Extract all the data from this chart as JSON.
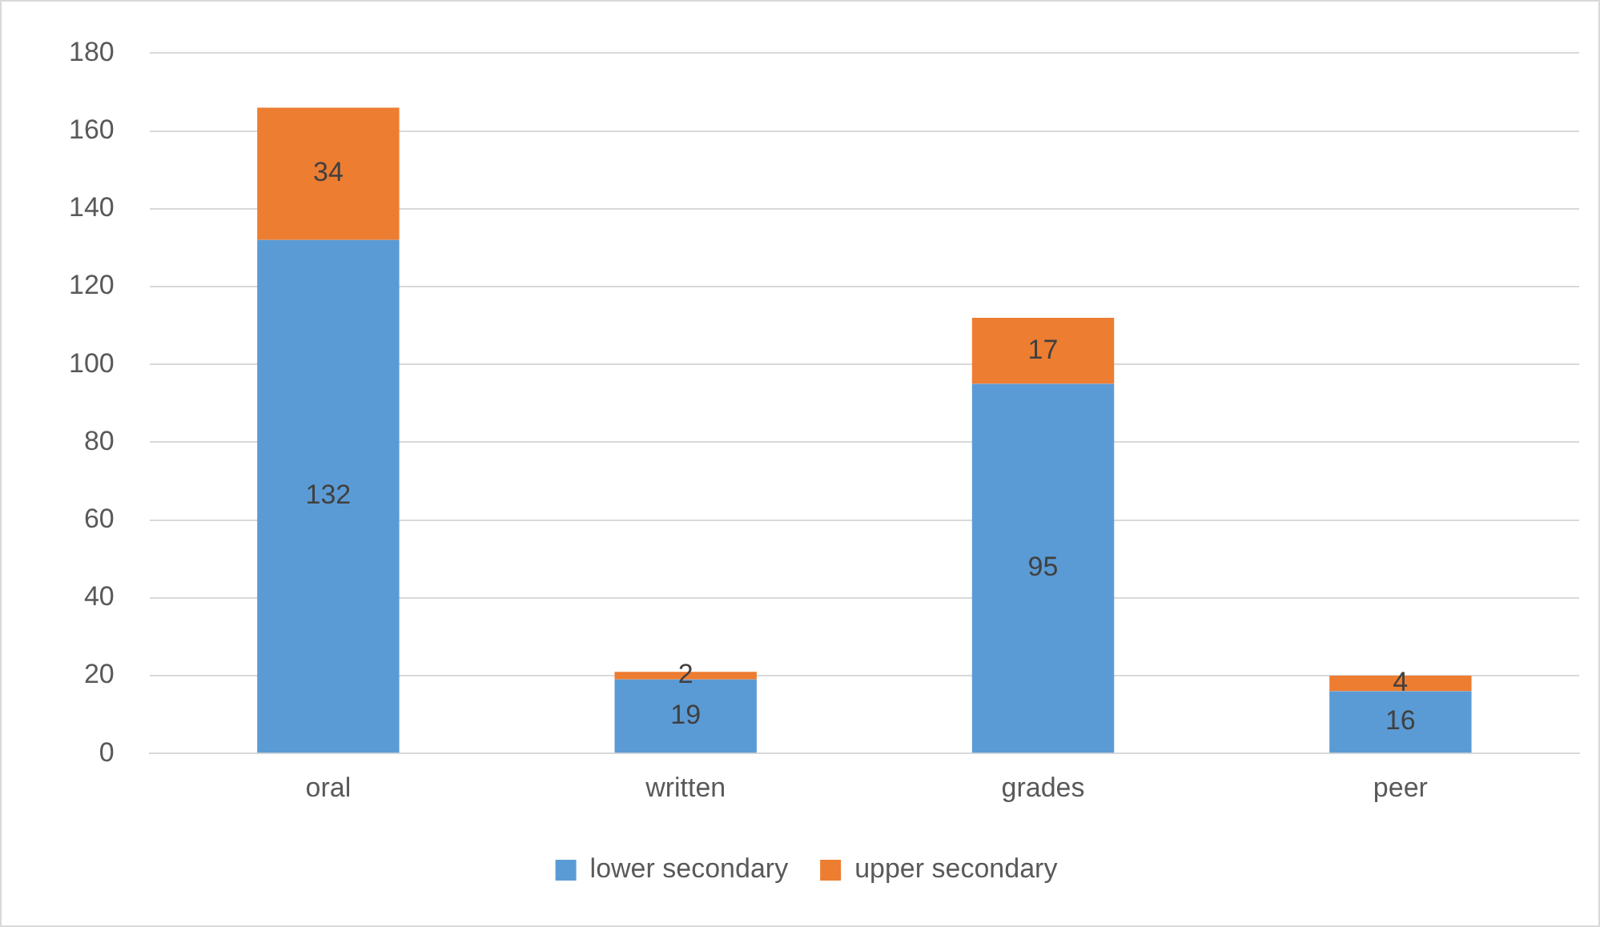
{
  "chart_data": {
    "type": "bar",
    "stacked": true,
    "categories": [
      "oral",
      "written",
      "grades",
      "peer"
    ],
    "series": [
      {
        "name": "lower secondary",
        "color": "#5b9bd5",
        "values": [
          132,
          19,
          95,
          16
        ]
      },
      {
        "name": "upper secondary",
        "color": "#ed7d31",
        "values": [
          34,
          2,
          17,
          4
        ]
      }
    ],
    "ylim": [
      0,
      180
    ],
    "yticks": [
      0,
      20,
      40,
      60,
      80,
      100,
      120,
      140,
      160,
      180
    ],
    "grid": "y",
    "legend": "bottom",
    "data_labels": true
  }
}
